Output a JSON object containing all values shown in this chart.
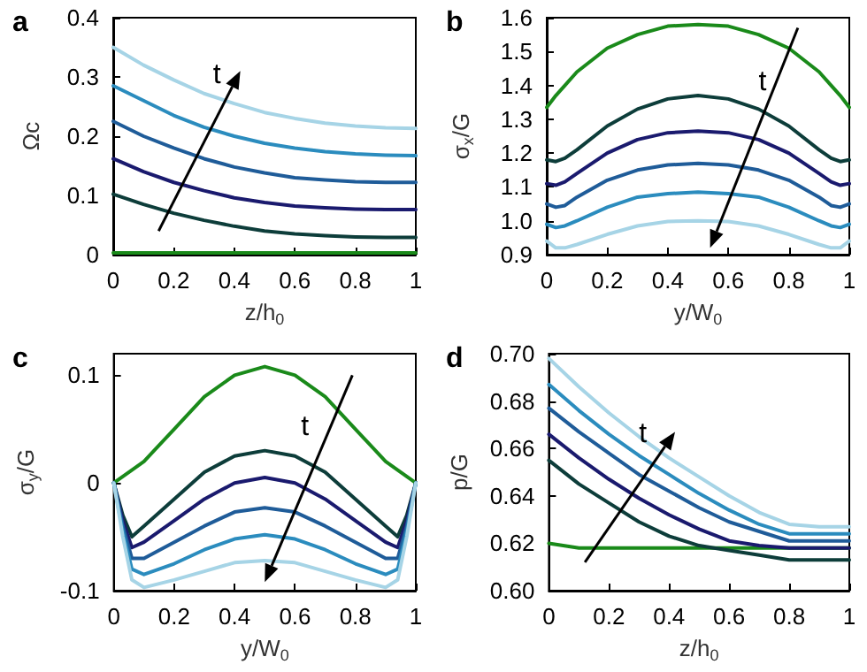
{
  "chart_data": [
    {
      "type": "line",
      "title": "a",
      "xlabel": "z/h$_{0}$",
      "ylabel": "Ωc",
      "annotations": [
        "t"
      ],
      "grid": false,
      "marker": "none",
      "line_style": "solid",
      "x": [
        0,
        0.1,
        0.2,
        0.3,
        0.4,
        0.5,
        0.6,
        0.7,
        0.8,
        0.9,
        1
      ],
      "xlim": [
        0,
        1
      ],
      "xticks": [
        0,
        0.2,
        0.4,
        0.6,
        0.8,
        1
      ],
      "ylim": [
        0,
        0.4
      ],
      "yticks": [
        0,
        0.1,
        0.2,
        0.3,
        0.4
      ],
      "series": [
        {
          "color": "#1a8a1a",
          "values": [
            0.003,
            0.003,
            0.003,
            0.003,
            0.003,
            0.003,
            0.003,
            0.003,
            0.003,
            0.003,
            0.003
          ]
        },
        {
          "color": "#0d3d3a",
          "values": [
            0.102,
            0.085,
            0.07,
            0.058,
            0.048,
            0.04,
            0.035,
            0.032,
            0.03,
            0.029,
            0.029
          ]
        },
        {
          "color": "#1a1a6e",
          "values": [
            0.162,
            0.14,
            0.122,
            0.108,
            0.096,
            0.088,
            0.082,
            0.079,
            0.077,
            0.076,
            0.076
          ]
        },
        {
          "color": "#1f5c99",
          "values": [
            0.225,
            0.2,
            0.18,
            0.162,
            0.148,
            0.138,
            0.13,
            0.126,
            0.123,
            0.122,
            0.122
          ]
        },
        {
          "color": "#2b8cbe",
          "values": [
            0.285,
            0.26,
            0.235,
            0.215,
            0.2,
            0.188,
            0.18,
            0.174,
            0.17,
            0.168,
            0.167
          ]
        },
        {
          "color": "#a6d4e6",
          "values": [
            0.35,
            0.32,
            0.295,
            0.272,
            0.255,
            0.24,
            0.23,
            0.222,
            0.217,
            0.214,
            0.213
          ]
        }
      ]
    },
    {
      "type": "line",
      "title": "b",
      "xlabel": "y/W$_{0}$",
      "ylabel": "σ$_{x}$/G",
      "annotations": [
        "t"
      ],
      "grid": false,
      "marker": "none",
      "line_style": "solid",
      "x": [
        0,
        0.03,
        0.06,
        0.1,
        0.2,
        0.3,
        0.4,
        0.5,
        0.6,
        0.7,
        0.8,
        0.9,
        0.94,
        0.97,
        1
      ],
      "xlim": [
        0,
        1
      ],
      "xticks": [
        0,
        0.2,
        0.4,
        0.6,
        0.8,
        1
      ],
      "ylim": [
        0.9,
        1.6
      ],
      "yticks": [
        0.9,
        {
          "value": 1,
          "label": "1.0"
        },
        1.1,
        1.2,
        1.3,
        1.4,
        1.5,
        1.6
      ],
      "series": [
        {
          "color": "#1a8a1a",
          "values": [
            1.335,
            1.37,
            1.4,
            1.44,
            1.51,
            1.55,
            1.575,
            1.58,
            1.575,
            1.55,
            1.51,
            1.44,
            1.4,
            1.37,
            1.335
          ]
        },
        {
          "color": "#0d3d3a",
          "values": [
            1.18,
            1.175,
            1.185,
            1.21,
            1.28,
            1.33,
            1.36,
            1.37,
            1.36,
            1.33,
            1.28,
            1.21,
            1.185,
            1.175,
            1.18
          ]
        },
        {
          "color": "#1a1a6e",
          "values": [
            1.11,
            1.105,
            1.115,
            1.14,
            1.2,
            1.24,
            1.26,
            1.265,
            1.26,
            1.24,
            1.2,
            1.14,
            1.115,
            1.105,
            1.11
          ]
        },
        {
          "color": "#1f5c99",
          "values": [
            1.05,
            1.04,
            1.045,
            1.07,
            1.12,
            1.15,
            1.165,
            1.17,
            1.165,
            1.15,
            1.12,
            1.07,
            1.045,
            1.04,
            1.05
          ]
        },
        {
          "color": "#2b8cbe",
          "values": [
            0.99,
            0.98,
            0.985,
            1.0,
            1.04,
            1.07,
            1.08,
            1.085,
            1.08,
            1.07,
            1.04,
            1.0,
            0.985,
            0.98,
            0.99
          ]
        },
        {
          "color": "#a6d4e6",
          "values": [
            0.94,
            0.92,
            0.92,
            0.93,
            0.96,
            0.985,
            0.998,
            1.0,
            0.998,
            0.985,
            0.96,
            0.93,
            0.92,
            0.92,
            0.94
          ]
        }
      ]
    },
    {
      "type": "line",
      "title": "c",
      "xlabel": "y/W$_{0}$",
      "ylabel": "σ$_{y}$/G",
      "annotations": [
        "t"
      ],
      "grid": false,
      "marker": "none",
      "line_style": "solid",
      "x": [
        0,
        0.03,
        0.06,
        0.1,
        0.2,
        0.3,
        0.4,
        0.5,
        0.6,
        0.7,
        0.8,
        0.9,
        0.94,
        0.97,
        1
      ],
      "xlim": [
        0,
        1
      ],
      "xticks": [
        0,
        0.2,
        0.4,
        0.6,
        0.8,
        1
      ],
      "ylim": [
        -0.1,
        0.12
      ],
      "yticks": [
        -0.1,
        0,
        0.1
      ],
      "series": [
        {
          "color": "#1a8a1a",
          "values": [
            0,
            0.006,
            0.012,
            0.02,
            0.05,
            0.08,
            0.1,
            0.108,
            0.1,
            0.08,
            0.05,
            0.02,
            0.012,
            0.006,
            0
          ]
        },
        {
          "color": "#0d3d3a",
          "values": [
            0,
            -0.03,
            -0.05,
            -0.04,
            -0.015,
            0.01,
            0.025,
            0.03,
            0.025,
            0.01,
            -0.015,
            -0.04,
            -0.05,
            -0.03,
            0
          ]
        },
        {
          "color": "#1a1a6e",
          "values": [
            0,
            -0.035,
            -0.06,
            -0.055,
            -0.035,
            -0.015,
            0,
            0.005,
            0,
            -0.015,
            -0.035,
            -0.055,
            -0.06,
            -0.035,
            0
          ]
        },
        {
          "color": "#1f5c99",
          "values": [
            0,
            -0.04,
            -0.07,
            -0.07,
            -0.055,
            -0.04,
            -0.027,
            -0.023,
            -0.027,
            -0.04,
            -0.055,
            -0.07,
            -0.07,
            -0.04,
            0
          ]
        },
        {
          "color": "#2b8cbe",
          "values": [
            0,
            -0.045,
            -0.08,
            -0.085,
            -0.075,
            -0.062,
            -0.052,
            -0.048,
            -0.052,
            -0.062,
            -0.075,
            -0.085,
            -0.08,
            -0.045,
            0
          ]
        },
        {
          "color": "#a6d4e6",
          "values": [
            0,
            -0.05,
            -0.09,
            -0.097,
            -0.09,
            -0.082,
            -0.074,
            -0.072,
            -0.074,
            -0.082,
            -0.09,
            -0.097,
            -0.09,
            -0.05,
            0
          ]
        }
      ]
    },
    {
      "type": "line",
      "title": "d",
      "xlabel": "z/h$_{0}$",
      "ylabel": "p/G",
      "annotations": [
        "t"
      ],
      "grid": false,
      "marker": "none",
      "line_style": "solid",
      "x": [
        0,
        0.1,
        0.2,
        0.3,
        0.4,
        0.5,
        0.6,
        0.7,
        0.8,
        0.9,
        1
      ],
      "xlim": [
        0,
        1
      ],
      "xticks": [
        0,
        0.2,
        0.4,
        0.6,
        0.8,
        1
      ],
      "ylim": [
        0.6,
        0.7
      ],
      "yticks": [
        {
          "value": 0.6,
          "label": "0.60"
        },
        {
          "value": 0.62,
          "label": "0.62"
        },
        {
          "value": 0.64,
          "label": "0.64"
        },
        {
          "value": 0.66,
          "label": "0.66"
        },
        {
          "value": 0.68,
          "label": "0.68"
        },
        {
          "value": 0.7,
          "label": "0.70"
        }
      ],
      "series": [
        {
          "color": "#1a8a1a",
          "values": [
            0.62,
            0.618,
            0.618,
            0.618,
            0.618,
            0.618,
            0.618,
            0.618,
            0.618,
            0.618,
            0.618
          ]
        },
        {
          "color": "#0d3d3a",
          "values": [
            0.655,
            0.645,
            0.637,
            0.629,
            0.623,
            0.619,
            0.617,
            0.615,
            0.613,
            0.613,
            0.613
          ]
        },
        {
          "color": "#1a1a6e",
          "values": [
            0.666,
            0.656,
            0.647,
            0.639,
            0.632,
            0.626,
            0.621,
            0.619,
            0.618,
            0.618,
            0.618
          ]
        },
        {
          "color": "#1f5c99",
          "values": [
            0.677,
            0.667,
            0.658,
            0.649,
            0.642,
            0.635,
            0.629,
            0.625,
            0.621,
            0.621,
            0.621
          ]
        },
        {
          "color": "#2b8cbe",
          "values": [
            0.687,
            0.676,
            0.666,
            0.657,
            0.649,
            0.641,
            0.634,
            0.628,
            0.624,
            0.624,
            0.624
          ]
        },
        {
          "color": "#a6d4e6",
          "values": [
            0.698,
            0.686,
            0.675,
            0.665,
            0.656,
            0.648,
            0.64,
            0.633,
            0.628,
            0.627,
            0.627
          ]
        }
      ]
    }
  ]
}
